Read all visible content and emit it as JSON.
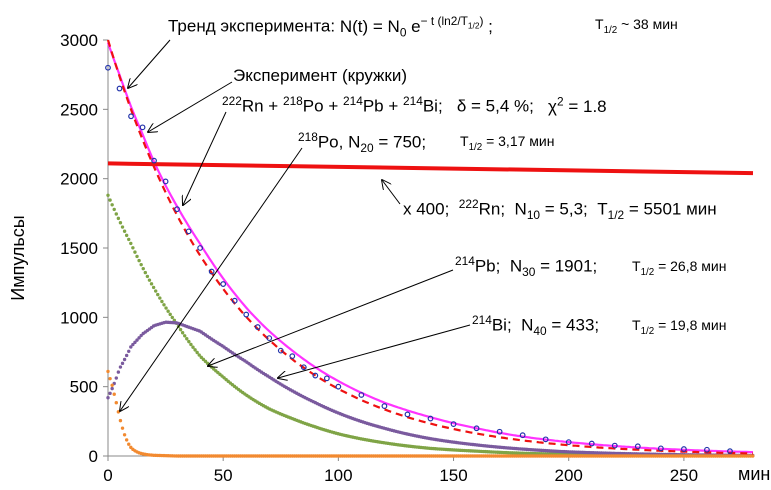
{
  "chart_data": {
    "type": "scatter",
    "ylabel": "Импульсы",
    "xlabel": "мин",
    "xlim": [
      0,
      280
    ],
    "ylim": [
      0,
      3000
    ],
    "xticks": [
      0,
      50,
      100,
      150,
      200,
      250
    ],
    "yticks": [
      0,
      500,
      1000,
      1500,
      2000,
      2500,
      3000
    ],
    "grid": false,
    "series": [
      {
        "name": "Эксперимент (кружки)",
        "kind": "points",
        "color": "#2233aa",
        "x": [
          0,
          5,
          10,
          15,
          20,
          25,
          30,
          35,
          40,
          45,
          50,
          55,
          60,
          65,
          70,
          75,
          80,
          85,
          90,
          95,
          100,
          110,
          120,
          130,
          140,
          150,
          160,
          170,
          180,
          190,
          200,
          210,
          220,
          230,
          240,
          250,
          260,
          270
        ],
        "y": [
          2800,
          2650,
          2450,
          2370,
          2130,
          1980,
          1780,
          1620,
          1500,
          1330,
          1240,
          1120,
          1020,
          930,
          850,
          760,
          720,
          640,
          580,
          560,
          500,
          440,
          360,
          300,
          270,
          230,
          200,
          175,
          150,
          120,
          100,
          90,
          75,
          70,
          55,
          50,
          45,
          35
        ]
      },
      {
        "name": "Тренд эксперимента",
        "kind": "dashed",
        "color": "#ee1111",
        "model": {
          "N0": 3000,
          "T_half_min": 38
        }
      },
      {
        "name": "²²²Rn + ²¹⁸Po + ²¹⁴Pb + ²¹⁴Bi",
        "kind": "line",
        "color": "#ff33ff",
        "x": [
          0,
          5,
          10,
          15,
          20,
          25,
          30,
          40,
          50,
          60,
          70,
          80,
          90,
          100,
          120,
          140,
          160,
          180,
          200,
          220,
          240,
          260,
          280
        ],
        "y": [
          2980,
          2750,
          2520,
          2320,
          2120,
          1950,
          1800,
          1530,
          1280,
          1070,
          900,
          760,
          640,
          540,
          385,
          280,
          200,
          140,
          100,
          72,
          52,
          38,
          28
        ]
      },
      {
        "name": "x 400; ²²²Rn",
        "kind": "line",
        "color": "#ee1111",
        "x": [
          0,
          280
        ],
        "y": [
          2110,
          2040
        ]
      },
      {
        "name": "²¹⁴Pb",
        "kind": "points",
        "color": "#7fa446",
        "x": [
          0,
          10,
          20,
          30,
          40,
          50,
          60,
          70,
          80,
          90,
          100,
          120,
          140,
          160,
          180,
          200,
          240,
          280
        ],
        "y": [
          1880,
          1530,
          1210,
          950,
          720,
          570,
          440,
          340,
          270,
          210,
          160,
          95,
          55,
          35,
          20,
          12,
          5,
          2
        ]
      },
      {
        "name": "²¹⁴Bi",
        "kind": "points",
        "color": "#7a5a9e",
        "x": [
          0,
          5,
          10,
          15,
          20,
          25,
          30,
          40,
          50,
          60,
          70,
          80,
          90,
          100,
          120,
          140,
          160,
          180,
          200,
          240,
          280
        ],
        "y": [
          420,
          630,
          790,
          880,
          940,
          965,
          960,
          900,
          790,
          680,
          570,
          470,
          385,
          310,
          200,
          125,
          80,
          50,
          30,
          12,
          4
        ]
      },
      {
        "name": "²¹⁸Po",
        "kind": "points",
        "color": "#f28a30",
        "x": [
          0,
          2,
          4,
          6,
          8,
          10,
          14,
          20,
          30,
          50,
          100,
          280
        ],
        "y": [
          610,
          500,
          360,
          220,
          120,
          60,
          20,
          5,
          0,
          0,
          0,
          0
        ]
      }
    ]
  },
  "annotations": {
    "trend_label": "Тренд эксперимента:",
    "trend_formula": "N(t) = N",
    "trend_n0_sub": "0",
    "trend_e": "e",
    "trend_exp": "− t (ln2/T",
    "trend_exp_sub": "1/2",
    "trend_exp_end": ")",
    "trend_sep": ";",
    "trend_T": "T",
    "trend_T_sub": "1/2",
    "trend_T_val": "~ 38 мин",
    "experiment": "Эксперимент (кружки)",
    "sum_sup1": "222",
    "sum_t1": "Rn + ",
    "sum_sup2": "218",
    "sum_t2": "Po + ",
    "sum_sup3": "214",
    "sum_t3": "Pb + ",
    "sum_sup4": "214",
    "sum_t4": "Bi;",
    "sum_delta": "δ = 5,4 %;",
    "sum_chi": "χ",
    "sum_chi_sup": "2",
    "sum_chi_val": " = 1.8",
    "po_sup": "218",
    "po_t": "Po, N",
    "po_sub": "20",
    "po_val": " = 750;",
    "po_T": "T",
    "po_T_sub": "1/2",
    "po_T_val": " = 3,17 мин",
    "rn_x": "x 400;",
    "rn_sup": "222",
    "rn_t": "Rn;",
    "rn_N": "N",
    "rn_sub": "10",
    "rn_val": " = 5,3;",
    "rn_T": "T",
    "rn_T_sub": "1/2",
    "rn_T_val": " = 5501 мин",
    "pb_sup": "214",
    "pb_t": "Pb;",
    "pb_N": "N",
    "pb_sub": "30",
    "pb_val": " = 1901;",
    "pb_T": "T",
    "pb_T_sub": "1/2",
    "pb_T_val": " = 26,8 мин",
    "bi_sup": "214",
    "bi_t": "Bi;",
    "bi_N": "N",
    "bi_sub": "40",
    "bi_val": " = 433;",
    "bi_T": "T",
    "bi_T_sub": "1/2",
    "bi_T_val": " = 19,8 мин"
  }
}
